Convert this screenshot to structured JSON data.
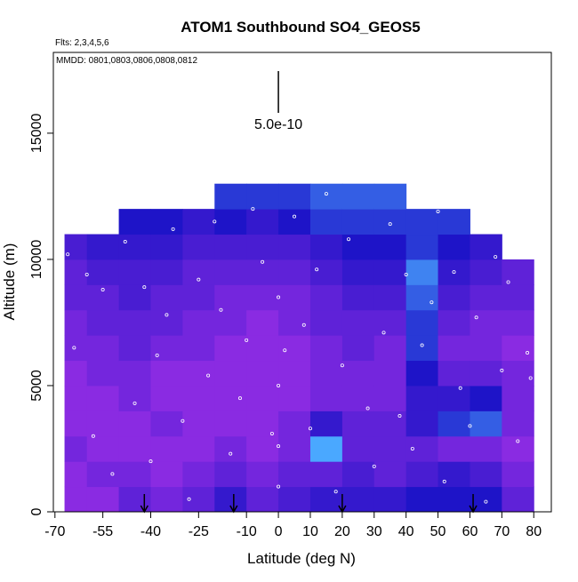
{
  "chart_data": {
    "type": "heatmap",
    "title": "ATOM1 Southbound SO4_GEOS5",
    "subtitle": "Flts: 2,3,4,5,6",
    "annotation": "MMDD: 0801,0803,0806,0808,0812",
    "scale_label": "5.0e-10",
    "x_label": "Latitude (deg N)",
    "y_label": "Altitude (m)",
    "xlim": [
      -70.5,
      85.5
    ],
    "ylim": [
      0,
      18200
    ],
    "xticks": [
      -70,
      -55,
      -40,
      -25,
      -10,
      0,
      10,
      20,
      30,
      40,
      50,
      60,
      70,
      80
    ],
    "yticks": [
      0,
      5000,
      10000,
      15000
    ],
    "x_edges": [
      -67,
      -60,
      -50,
      -40,
      -30,
      -20,
      -10,
      0,
      10,
      20,
      30,
      40,
      50,
      60,
      70,
      80
    ],
    "y_edges": [
      0,
      1000,
      2000,
      3000,
      4000,
      5000,
      6000,
      7000,
      8000,
      9000,
      10000,
      11000,
      12000,
      13000
    ],
    "z": [
      [
        2e-10,
        2e-10,
        2.5e-10,
        2e-10,
        2e-10,
        2e-10,
        2.5e-10,
        2.5e-10,
        3e-10,
        3e-10,
        3.5e-10,
        null,
        null
      ],
      [
        2e-10,
        2.5e-10,
        2e-10,
        2e-10,
        2e-10,
        2.5e-10,
        2.5e-10,
        3e-10,
        3e-10,
        3.5e-10,
        4e-10,
        null,
        null
      ],
      [
        3e-10,
        2.5e-10,
        2e-10,
        2e-10,
        2.5e-10,
        2.5e-10,
        3e-10,
        3e-10,
        3.5e-10,
        3.5e-10,
        4e-10,
        4.5e-10,
        null
      ],
      [
        2.5e-10,
        2e-10,
        2e-10,
        2.5e-10,
        2e-10,
        2e-10,
        2.5e-10,
        3e-10,
        3e-10,
        3.5e-10,
        4e-10,
        4.5e-10,
        null
      ],
      [
        3e-10,
        2.5e-10,
        2e-10,
        2e-10,
        2e-10,
        2e-10,
        2.5e-10,
        2.5e-10,
        3e-10,
        3e-10,
        3.5e-10,
        4e-10,
        null
      ],
      [
        4e-10,
        3e-10,
        2.5e-10,
        2e-10,
        2e-10,
        2e-10,
        2e-10,
        2.5e-10,
        2.5e-10,
        3e-10,
        3.5e-10,
        4.5e-10,
        5e-10
      ],
      [
        3e-10,
        2.5e-10,
        2e-10,
        2e-10,
        2e-10,
        2e-10,
        2e-10,
        2e-10,
        2.5e-10,
        3e-10,
        3.5e-10,
        4e-10,
        5e-10
      ],
      [
        3.5e-10,
        3e-10,
        2.5e-10,
        2.5e-10,
        2e-10,
        2e-10,
        2e-10,
        2.5e-10,
        2.5e-10,
        3e-10,
        3.5e-10,
        4.5e-10,
        5e-10
      ],
      [
        4e-10,
        3e-10,
        6.5e-10,
        4e-10,
        2.5e-10,
        2.5e-10,
        2.5e-10,
        3e-10,
        3e-10,
        3.5e-10,
        4e-10,
        5e-10,
        5.5e-10
      ],
      [
        4e-10,
        3.5e-10,
        3e-10,
        3e-10,
        2.5e-10,
        2.5e-10,
        3e-10,
        3e-10,
        3.5e-10,
        4e-10,
        4.5e-10,
        5e-10,
        5.5e-10
      ],
      [
        4e-10,
        3e-10,
        3e-10,
        3e-10,
        2.5e-10,
        2.5e-10,
        2.5e-10,
        3e-10,
        3.5e-10,
        4e-10,
        4.5e-10,
        5e-10,
        5.5e-10
      ],
      [
        4.5e-10,
        3.5e-10,
        3e-10,
        4e-10,
        4e-10,
        4.5e-10,
        5e-10,
        5e-10,
        5.5e-10,
        6e-10,
        5e-10,
        5e-10,
        null
      ],
      [
        4.5e-10,
        4e-10,
        2.5e-10,
        5e-10,
        4e-10,
        3e-10,
        2.5e-10,
        3e-10,
        3.5e-10,
        4e-10,
        4.5e-10,
        5e-10,
        null
      ],
      [
        4.5e-10,
        3.5e-10,
        2.5e-10,
        5.5e-10,
        4.5e-10,
        3e-10,
        2.5e-10,
        2.5e-10,
        3e-10,
        3.5e-10,
        4e-10,
        null,
        null
      ],
      [
        3e-10,
        2.5e-10,
        2e-10,
        2.5e-10,
        2.5e-10,
        2.5e-10,
        2e-10,
        2.5e-10,
        3e-10,
        3e-10,
        null,
        null,
        null
      ]
    ],
    "color_scale": {
      "values": [
        2e-10,
        4.5e-10,
        6.5e-10
      ],
      "colors": [
        "#8a2be2",
        "#1e14c8",
        "#4aa8ff"
      ]
    },
    "samples": {
      "x": [
        -66,
        -64,
        -60,
        -58,
        -55,
        -52,
        -48,
        -45,
        -42,
        -40,
        -38,
        -35,
        -33,
        -30,
        -28,
        -25,
        -22,
        -20,
        -18,
        -15,
        -12,
        -10,
        -8,
        -5,
        -2,
        0,
        0,
        0,
        0,
        2,
        5,
        8,
        10,
        12,
        15,
        18,
        20,
        22,
        25,
        28,
        30,
        33,
        35,
        38,
        40,
        42,
        45,
        48,
        50,
        52,
        55,
        57,
        60,
        62,
        65,
        68,
        70,
        72,
        75,
        78,
        79
      ],
      "y": [
        10200,
        6500,
        9400,
        3000,
        8800,
        1500,
        10700,
        4300,
        8900,
        2000,
        6200,
        7800,
        11200,
        3600,
        500,
        9200,
        5400,
        11500,
        8000,
        2300,
        4500,
        6800,
        12000,
        9900,
        3100,
        1000,
        2600,
        5000,
        8500,
        6400,
        11700,
        7400,
        3300,
        9600,
        12600,
        800,
        5800,
        10800,
        13200,
        4100,
        1800,
        7100,
        11400,
        3800,
        9400,
        2500,
        6600,
        8300,
        11900,
        1200,
        9500,
        4900,
        3400,
        7700,
        400,
        10100,
        5600,
        9100,
        2800,
        6300,
        5300
      ]
    },
    "arrows": [
      -42,
      -14,
      20,
      61
    ]
  }
}
